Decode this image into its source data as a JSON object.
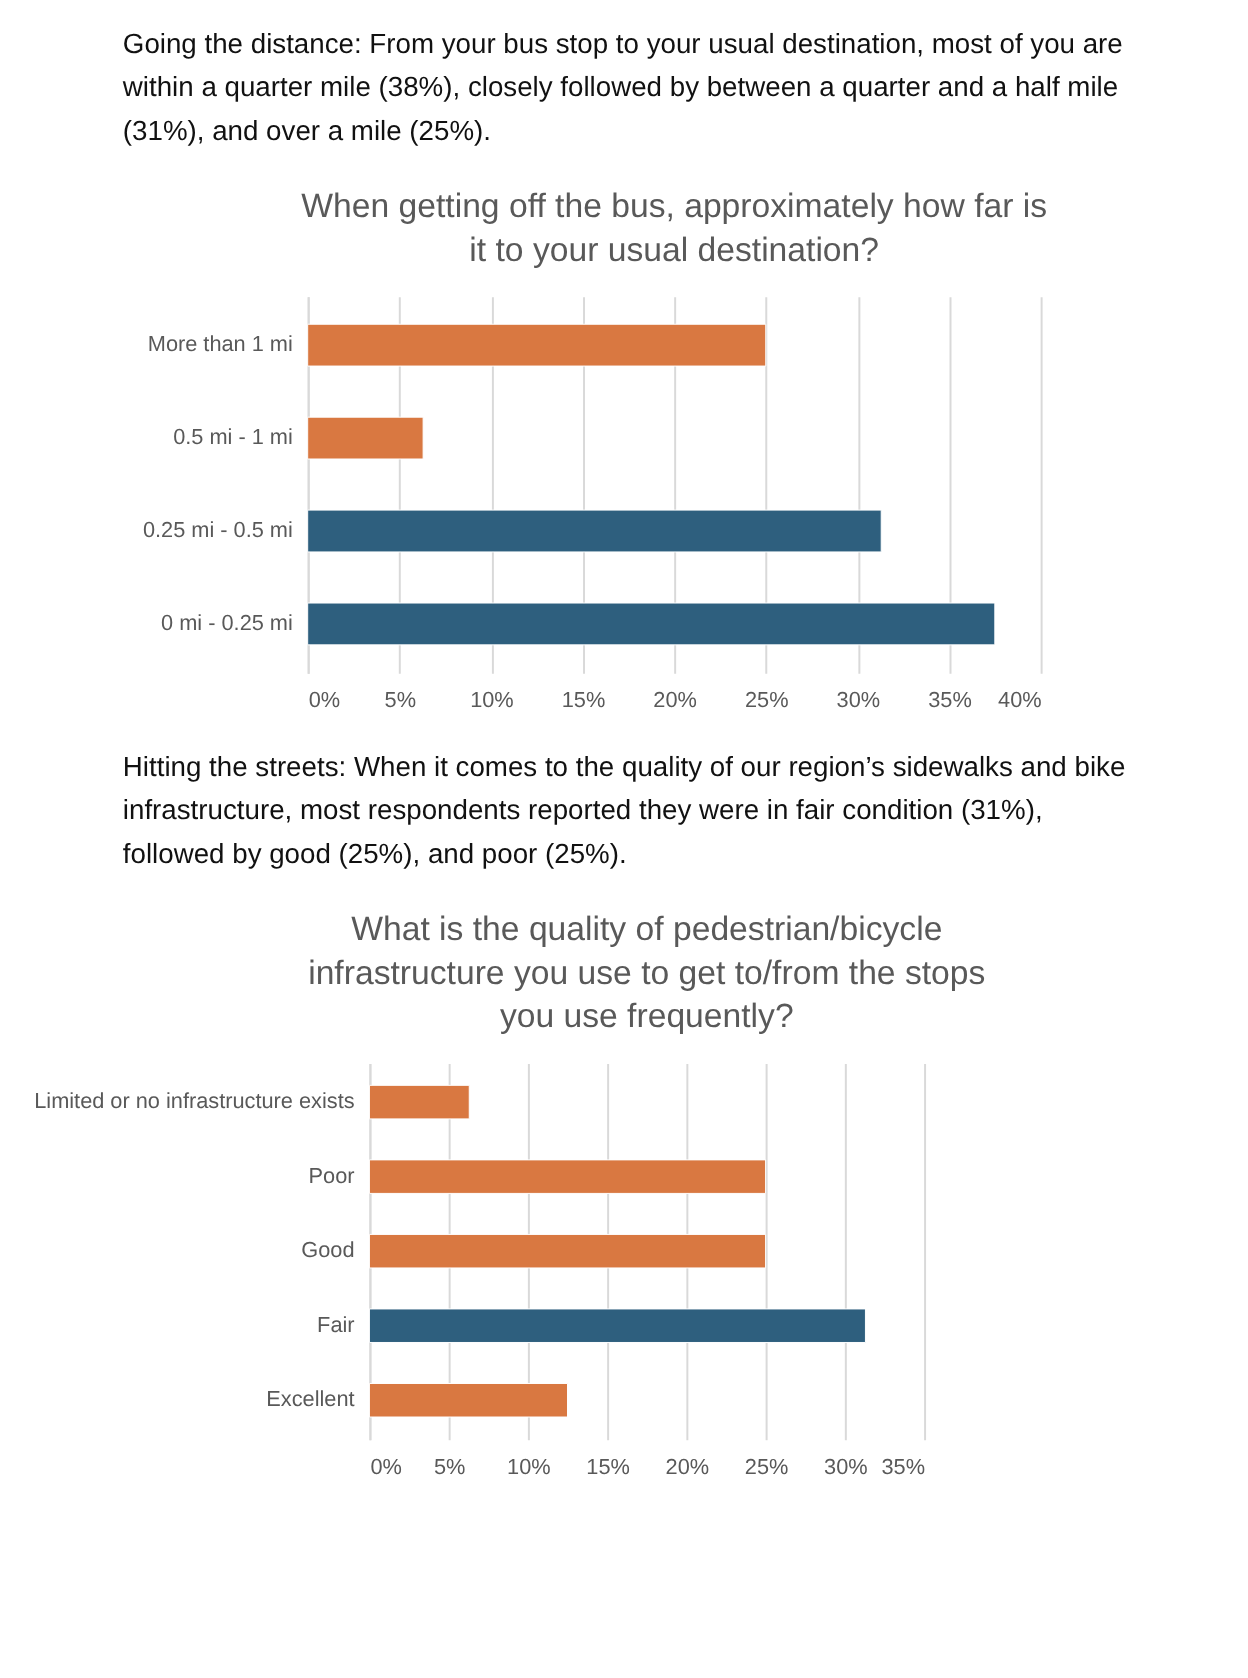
{
  "chart_data": [
    {
      "type": "bar",
      "orientation": "horizontal",
      "title": "When getting off the bus, approximately how far is it to your usual destination?",
      "annotations": [
        "Going the distance: From your bus stop to your usual destination, most of you are within a quarter mile (38%), closely followed by between a quarter and a half mile (31%), and over a mile (25%)."
      ],
      "categories": [
        "More than 1 mi",
        "0.5 mi - 1 mi",
        "0.25 mi - 0.5 mi",
        "0 mi - 0.25 mi"
      ],
      "values": [
        25,
        6.3,
        31.3,
        37.5
      ],
      "colors": [
        "#d97841",
        "#d97841",
        "#2e5f7e",
        "#2e5f7e"
      ],
      "xlim": [
        0,
        40
      ],
      "xticks": [
        {
          "value": 0,
          "label": "0%"
        },
        {
          "value": 5,
          "label": "5%"
        },
        {
          "value": 10,
          "label": "10%"
        },
        {
          "value": 15,
          "label": "15%"
        },
        {
          "value": 20,
          "label": "20%"
        },
        {
          "value": 25,
          "label": "25%"
        },
        {
          "value": 30,
          "label": "30%"
        },
        {
          "value": 35,
          "label": "35%"
        },
        {
          "value": 40,
          "label": "40%"
        }
      ],
      "grid": "x"
    },
    {
      "type": "bar",
      "orientation": "horizontal",
      "title": "What is the quality of pedestrian/bicycle infrastructure you use to get to/from the stops you use frequently?",
      "annotations": [
        "Hitting the streets: When it comes to the quality of our region’s sidewalks and bike infrastructure, most respondents reported they were in fair condition (31%), followed by good (25%), and poor (25%)."
      ],
      "categories": [
        "Limited or no infrastructure exists",
        "Poor",
        "Good",
        "Fair",
        "Excellent"
      ],
      "values": [
        6.3,
        25,
        25,
        31.3,
        12.5
      ],
      "colors": [
        "#d97841",
        "#d97841",
        "#d97841",
        "#2e5f7e",
        "#d97841"
      ],
      "xlim": [
        0,
        35
      ],
      "xticks": [
        {
          "value": 0,
          "label": "0%"
        },
        {
          "value": 5,
          "label": "5%"
        },
        {
          "value": 10,
          "label": "10%"
        },
        {
          "value": 15,
          "label": "15%"
        },
        {
          "value": 20,
          "label": "20%"
        },
        {
          "value": 25,
          "label": "25%"
        },
        {
          "value": 30,
          "label": "30%"
        },
        {
          "value": 35,
          "label": "35%"
        }
      ],
      "grid": "x"
    }
  ]
}
